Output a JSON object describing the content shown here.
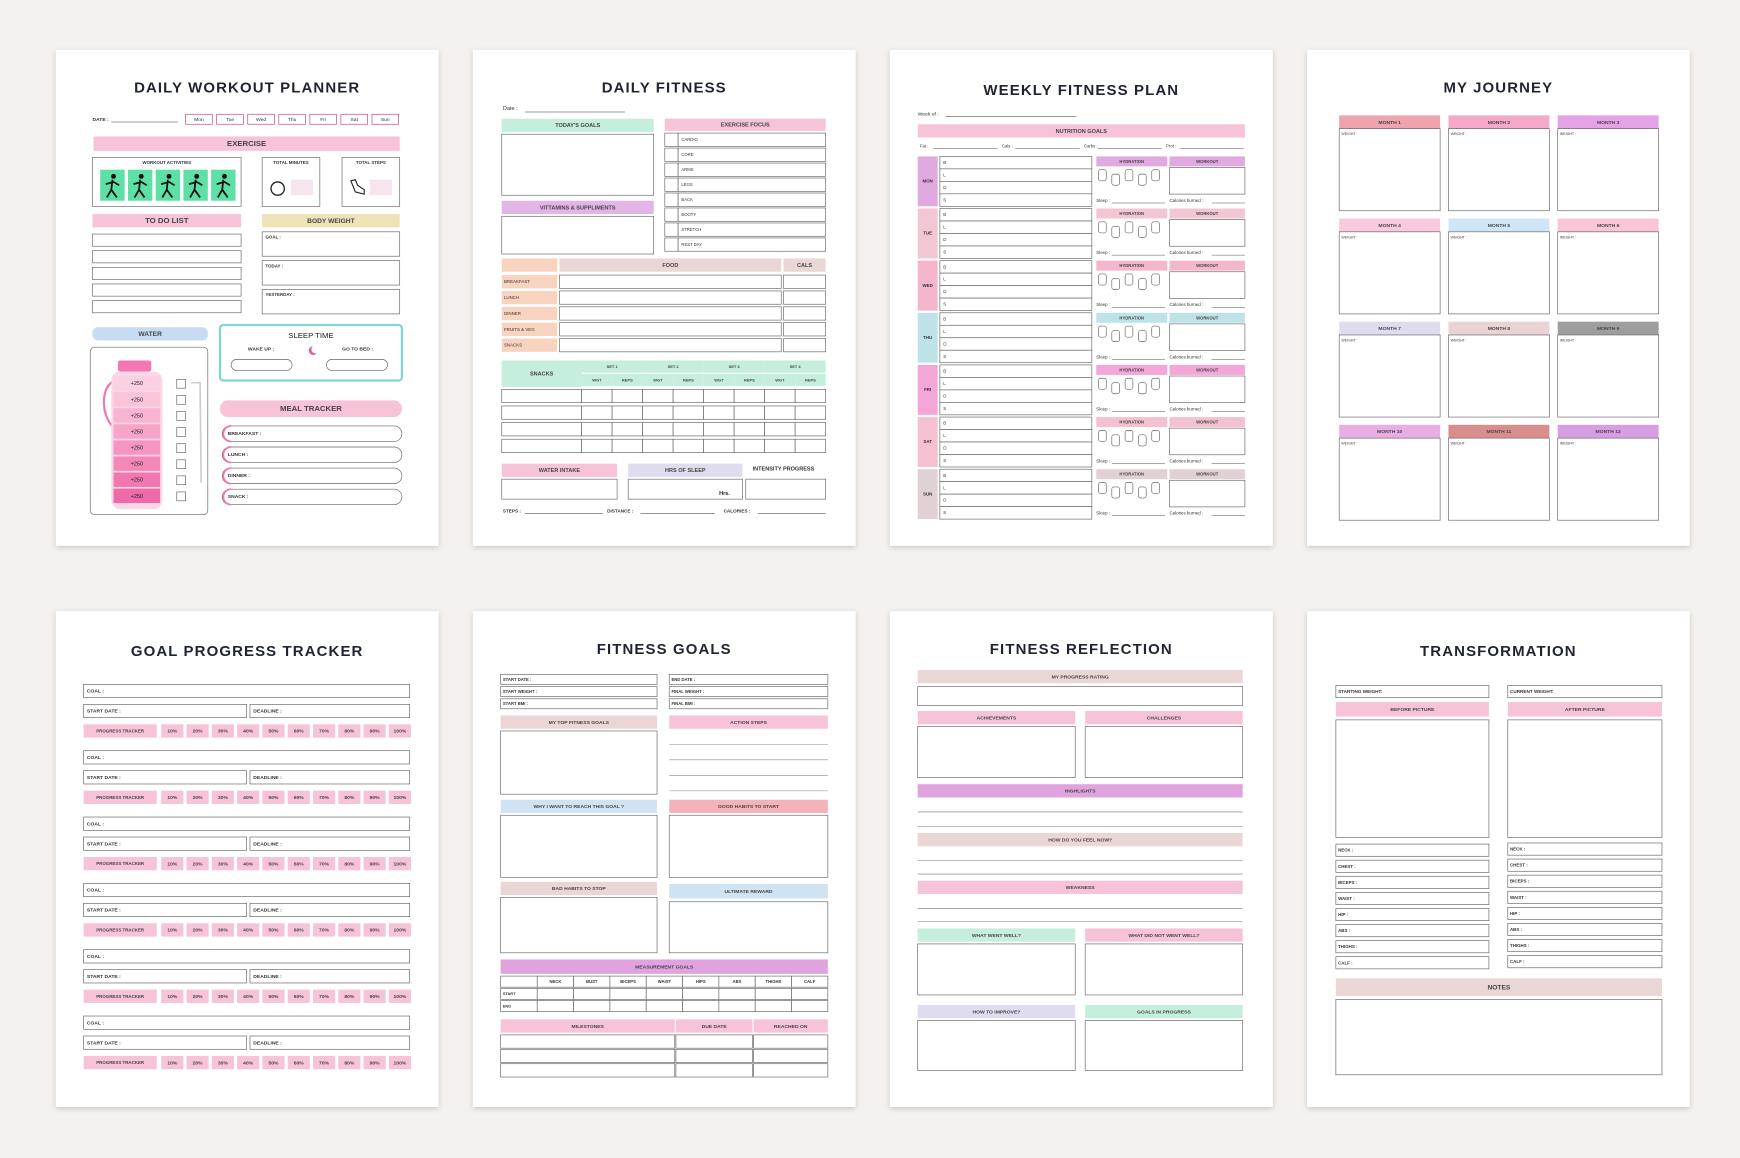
{
  "pages": [
    {
      "title": "DAILY WORKOUT PLANNER",
      "date_label": "DATE :",
      "days": [
        "Mon",
        "Tue",
        "Wed",
        "Thu",
        "Fri",
        "Sat",
        "Sun"
      ],
      "exercise": "EXERCISE",
      "workout_activities": "WORKOUT ACTIVITIES",
      "total_minutes": "TOTAL MINUTES",
      "total_steps": "TOTAL STEPS",
      "to_do_list": "TO DO LIST",
      "body_weight": "BODY WEIGHT",
      "goal": "GOAL :",
      "today": "TODAY :",
      "yesterday": "YESTERDAY :",
      "water": "WATER",
      "water_amounts": [
        "+250",
        "+250",
        "+250",
        "+250",
        "+250",
        "+250",
        "+250",
        "+250"
      ],
      "sleep_time": "SLEEP TIME",
      "wake_up": "WAKE UP :",
      "go_to_bed": "GO TO BED :",
      "meal_tracker": "MEAL TRACKER",
      "meals": [
        "BREAKFAST :",
        "LUNCH :",
        "DINNER :",
        "SNACK :"
      ]
    },
    {
      "title": "DAILY FITNESS",
      "date_label": "Date :",
      "todays_goals": "TODAY'S GOALS",
      "vitamins": "VITTAMINS & SUPPLIMENTS",
      "exercise_focus": "EXERCISE FOCUS",
      "focus_items": [
        "CARDIO",
        "CORE",
        "ARMS",
        "LEGS",
        "BACK",
        "BOOTY",
        "STRETCH",
        "REST DAY"
      ],
      "food": "FOOD",
      "cals": "CALS",
      "meals": [
        "BREAKFAST",
        "LUNCH",
        "DINNER",
        "FRUITS & VEG",
        "SNACKS"
      ],
      "sets_label": "SNACKS",
      "sets": [
        "SET 1",
        "SET 2",
        "SET 3",
        "SET 4"
      ],
      "wgt": "WGT",
      "reps": "REPS",
      "water_intake": "WATER INTAKE",
      "hrs_of_sleep": "HRS OF SLEEP",
      "hrs": "Hrs.",
      "intensity_progress": "INTENSITY PROGRESS",
      "steps": "STEPS :",
      "distance": "DISTANCE :",
      "calories": "CALORIES :"
    },
    {
      "title": "WEEKLY  FITNESS PLAN",
      "week_of": "Week of :",
      "nutrition_goals": "NUTRITION GOALS",
      "macros": [
        "Fat :",
        "Cals :",
        "Carbs :",
        "Prot :"
      ],
      "days": [
        "MON",
        "TUE",
        "WED",
        "THU",
        "FRI",
        "SAT",
        "SUN"
      ],
      "meals": [
        "B",
        "L",
        "D",
        "S"
      ],
      "hydration": "HYDRATION",
      "workout": "WORKOUT",
      "sleep": "Sleep :",
      "calories_burned": "Calories burned :"
    },
    {
      "title": "MY JOURNEY",
      "months": [
        "MONTH 1",
        "MONTH 2",
        "MONTH 3",
        "MONTH 4",
        "MONTH 5",
        "MONTH 6",
        "MONTH 7",
        "MONTH 8",
        "MONTH 9",
        "MONTH 10",
        "MONTH 11",
        "MONTH 12"
      ],
      "weight": "WEIGHT :"
    },
    {
      "title": "GOAL PROGRESS TRACKER",
      "goal": "COAL :",
      "start_date": "START DATE :",
      "deadline": "DEADLINE :",
      "progress_tracker": "PROGRESS TRACKER",
      "percents": [
        "10%",
        "20%",
        "30%",
        "40%",
        "50%",
        "60%",
        "70%",
        "80%",
        "90%",
        "100%"
      ]
    },
    {
      "title": "FITNESS  GOALS",
      "start_fields": [
        "START DATE :",
        "START WEIGHT :",
        "START BMI :"
      ],
      "end_fields": [
        "END DATE :",
        "FINAL WEIGHT :",
        "FINAL BMI :"
      ],
      "top_goals": "MY TOP FITNESS GOALS",
      "action_steps": "ACTION STEPS",
      "why": "WHY I WANT TO REACH THIS GOAL ?",
      "good_habits": "GOOD HABITS TO START",
      "bad_habits": "BAD HABITS TO STOP",
      "reward": "ULTIMATE REWARD",
      "measurement_goals": "MEASUREMENT GOALS",
      "measurements": [
        "NECK",
        "BUST",
        "BICEPS",
        "WAIST",
        "HIPS",
        "ABS",
        "THIGHS",
        "CALF"
      ],
      "rows": [
        "START",
        "END"
      ],
      "milestones": "MILESTONES",
      "due_date": "DUE DATE",
      "reached_on": "REACHED ON"
    },
    {
      "title": "FITNESS REFLECTION",
      "progress_rating": "MY PROGRESS RATING",
      "achievements": "ACHIEVEMENTS",
      "challenges": "CHALLENGES",
      "highlights": "HIGHLIGHTS",
      "feel_now": "HOW DO YOU FEEL NOW?",
      "weakness": "WEAKNESS",
      "went_well": "WHAT WENT WELL?",
      "not_well": "WHAT DID NOT WENT WELL?",
      "improve": "HOW TO IMPROVE?",
      "goals_in_progress": "GOALS IN PROGRESS"
    },
    {
      "title": "TRANSFORMATION",
      "starting_weight": "STARTING WEIGHT:",
      "current_weight": "CURRENT WEIGHT:",
      "before_picture": "BEFORE PICTURE",
      "after_picture": "AFTER PICTURE",
      "measurements": [
        "NECK :",
        "CHEST :",
        "BICEPS :",
        "WAIST :",
        "HIP :",
        "ABS :",
        "THIGHS :",
        "CALF :"
      ],
      "notes": "NOTES"
    }
  ]
}
